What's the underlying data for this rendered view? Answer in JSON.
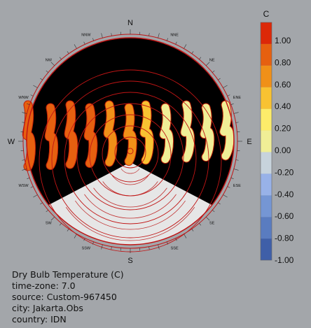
{
  "chart_data": {
    "type": "sunpath",
    "compass": {
      "major": [
        "N",
        "E",
        "S",
        "W"
      ],
      "minor": [
        "NNE",
        "NE",
        "ENE",
        "ESE",
        "SE",
        "SSE",
        "SSW",
        "SW",
        "WSW",
        "WNW",
        "NW",
        "NNW"
      ]
    },
    "legend": {
      "unit": "C",
      "ticks": [
        "1.00",
        "0.80",
        "0.60",
        "0.40",
        "0.20",
        "0.00",
        "-0.20",
        "-0.40",
        "-0.60",
        "-0.80",
        "-1.00"
      ],
      "range": [
        -1.0,
        1.0
      ],
      "colors": [
        "#3f5fa8",
        "#5a7cc0",
        "#7596d4",
        "#98b2e8",
        "#c7d3dc",
        "#f0ee96",
        "#fcec6a",
        "#f8c232",
        "#f09018",
        "#e66010",
        "#dc2808"
      ]
    },
    "colors": {
      "sky": "#000000",
      "ring": "#c01515",
      "ground": "#e6e6e6",
      "ground_lines": "#c03030"
    }
  },
  "info": {
    "title": "Dry Bulb Temperature (C)",
    "timezone": "time-zone: 7.0",
    "source": "source: Custom-967450",
    "city": "city: Jakarta.Obs",
    "country": "country: IDN"
  }
}
